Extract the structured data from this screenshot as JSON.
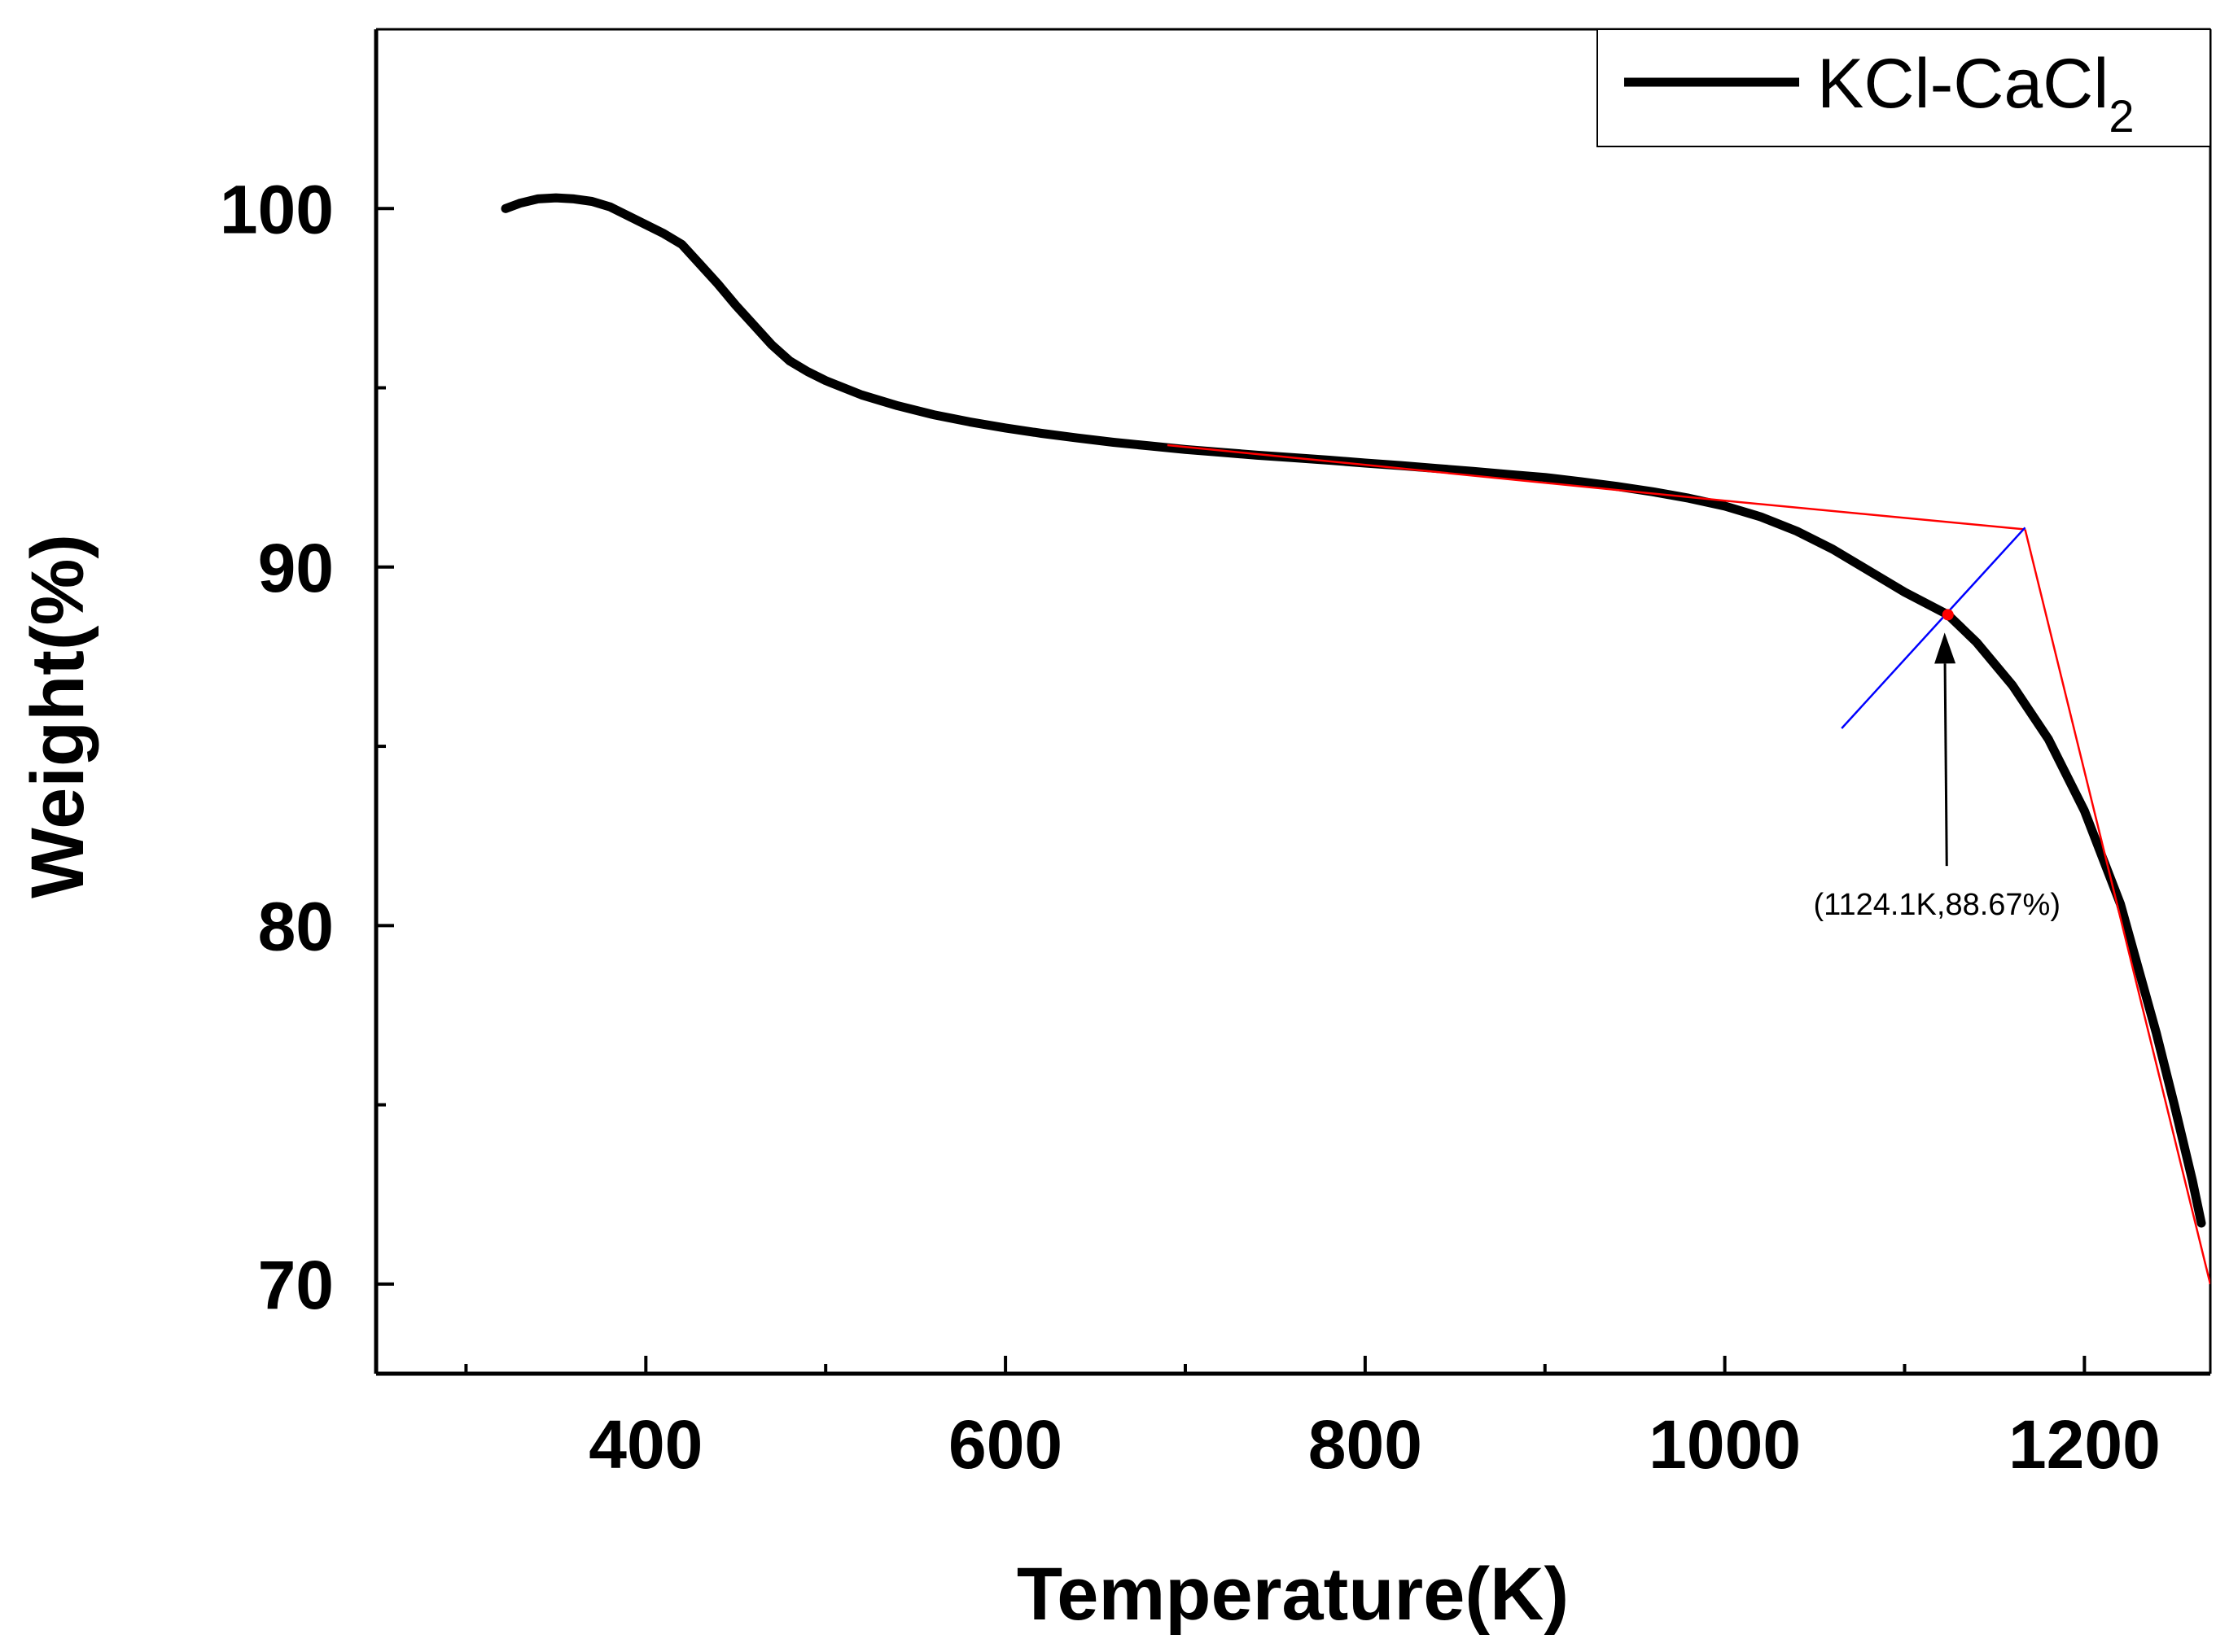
{
  "chart_data": {
    "type": "line",
    "title": "",
    "xlabel": "Temperature(K)",
    "ylabel": "Weight(%)",
    "xlim": [
      250,
      1270
    ],
    "ylim": [
      67.5,
      105
    ],
    "x_major_ticks": [
      400,
      600,
      800,
      1000,
      1200
    ],
    "x_minor_ticks": [
      300,
      500,
      700,
      900,
      1100
    ],
    "y_major_ticks": [
      70,
      80,
      90,
      100
    ],
    "y_minor_ticks": [
      75,
      85,
      95
    ],
    "grid": false,
    "legend": {
      "position": "top-right",
      "entries": [
        {
          "label_main": "KCl-CaCl",
          "label_sub": "2"
        }
      ]
    },
    "series": [
      {
        "name": "KCl-CaCl2",
        "color": "#000000",
        "x": [
          322,
          330,
          340,
          350,
          360,
          370,
          380,
          390,
          400,
          410,
          420,
          430,
          440,
          450,
          460,
          470,
          480,
          490,
          500,
          520,
          540,
          560,
          580,
          600,
          620,
          640,
          660,
          680,
          700,
          720,
          740,
          760,
          780,
          800,
          820,
          840,
          860,
          880,
          900,
          920,
          940,
          960,
          980,
          1000,
          1020,
          1040,
          1060,
          1080,
          1100,
          1124.1,
          1140,
          1160,
          1180,
          1200,
          1220,
          1240,
          1250,
          1260,
          1265
        ],
        "y": [
          100.0,
          100.15,
          100.27,
          100.3,
          100.27,
          100.2,
          100.05,
          99.8,
          99.55,
          99.3,
          99.0,
          98.45,
          97.9,
          97.3,
          96.75,
          96.2,
          95.75,
          95.45,
          95.2,
          94.8,
          94.5,
          94.25,
          94.05,
          93.88,
          93.73,
          93.6,
          93.48,
          93.38,
          93.28,
          93.2,
          93.12,
          93.05,
          92.98,
          92.9,
          92.83,
          92.75,
          92.67,
          92.58,
          92.5,
          92.38,
          92.25,
          92.1,
          91.92,
          91.7,
          91.4,
          91.0,
          90.5,
          89.9,
          89.3,
          88.67,
          87.9,
          86.7,
          85.2,
          83.2,
          80.6,
          77.0,
          75.0,
          72.9,
          71.7
        ]
      }
    ],
    "tangent_lines": [
      {
        "name": "baseline-tangent",
        "color": "#ff0000",
        "points": [
          [
            690,
            93.4
          ],
          [
            1000,
            91.85
          ],
          [
            1167,
            91.05
          ]
        ]
      },
      {
        "name": "steep-tangent",
        "color": "#ff0000",
        "points": [
          [
            1167,
            91.05
          ],
          [
            1270,
            70.0
          ]
        ]
      },
      {
        "name": "bisector",
        "color": "#0000ff",
        "points": [
          [
            1065,
            85.5
          ],
          [
            1167,
            91.1
          ]
        ]
      }
    ],
    "annotation": {
      "label": "(1124.1K,88.67%)",
      "point": [
        1124.1,
        88.67
      ],
      "label_anchor": [
        1118,
        80.3
      ],
      "point_color": "#ff0000"
    }
  }
}
